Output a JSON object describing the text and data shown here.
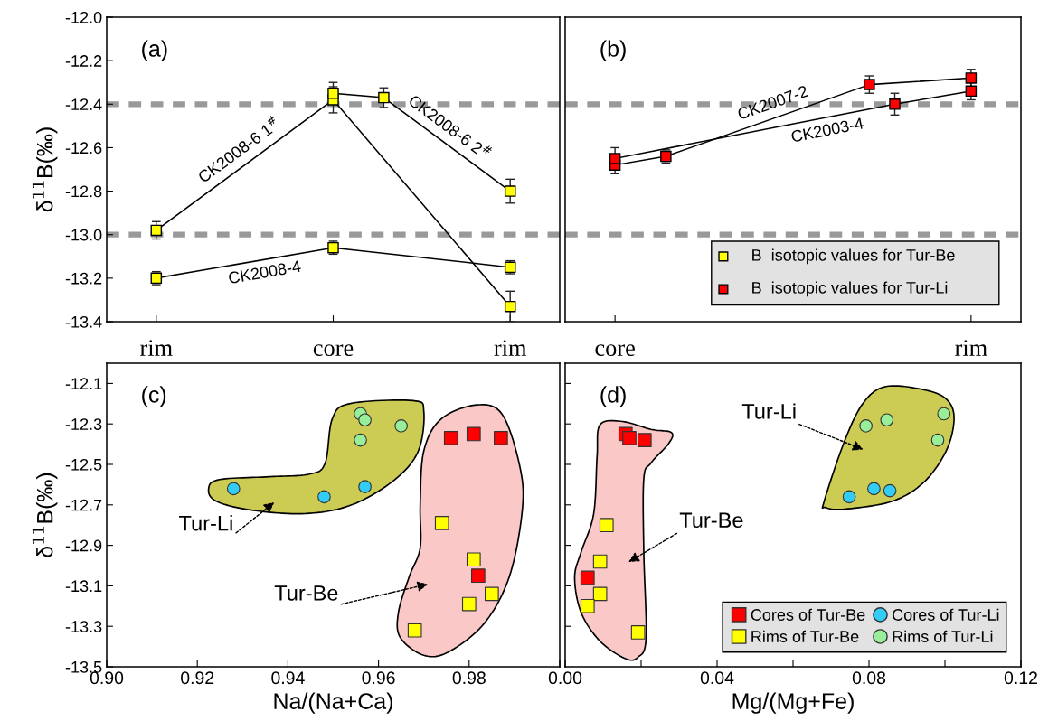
{
  "chart_data": [
    {
      "type": "line",
      "ylabel": "δ$^{11}$B(‰)",
      "annotations": [
        "(a)"
      ],
      "marker": "square",
      "line_style": "solid",
      "grid": false,
      "categories": [
        "rim",
        null,
        null,
        null,
        null,
        null,
        null,
        "core",
        null,
        null,
        null,
        null,
        null,
        null,
        "rim"
      ],
      "ylim": [
        -13.4,
        -12.0
      ],
      "yticks": [
        {
          "value": -12.0,
          "label": "-12.0"
        },
        {
          "value": -12.2,
          "label": "-12.2"
        },
        {
          "value": -12.4,
          "label": "-12.4"
        },
        {
          "value": -12.6,
          "label": "-12.6"
        },
        {
          "value": -12.8,
          "label": "-12.8"
        },
        {
          "value": -13.0,
          "label": "-13.0"
        },
        {
          "value": -13.2,
          "label": "-13.2"
        },
        {
          "value": -13.4,
          "label": "-13.4"
        }
      ],
      "ref_lines": [
        {
          "axis": "y",
          "value": -12.4,
          "color": "#999999",
          "line_style": "dashed"
        },
        {
          "axis": "y",
          "value": -13.0,
          "color": "#999999",
          "line_style": "dashed"
        }
      ],
      "series": [
        {
          "name": "CK2008-6 1$^{#}$",
          "color": "#ffff00",
          "values": [
            -12.98,
            null,
            null,
            null,
            null,
            null,
            null,
            -12.38,
            null,
            null,
            null,
            null,
            null,
            null,
            -13.33
          ],
          "errors": [
            0.04,
            null,
            null,
            null,
            null,
            null,
            null,
            0.06,
            null,
            null,
            null,
            null,
            null,
            null,
            0.07
          ]
        },
        {
          "name": "CK2008-6 2$^{#}$",
          "color": "#ffff00",
          "values": [
            null,
            null,
            null,
            null,
            null,
            null,
            null,
            -12.35,
            null,
            -12.37,
            null,
            null,
            null,
            null,
            -12.8
          ],
          "errors": [
            null,
            null,
            null,
            null,
            null,
            null,
            null,
            0.05,
            null,
            0.045,
            null,
            null,
            null,
            null,
            0.055
          ]
        },
        {
          "name": "CK2008-4",
          "color": "#ffff00",
          "values": [
            -13.2,
            null,
            null,
            null,
            null,
            null,
            null,
            -13.06,
            null,
            null,
            null,
            null,
            null,
            null,
            -13.15
          ],
          "errors": [
            0.03,
            null,
            null,
            null,
            null,
            null,
            null,
            0.03,
            null,
            null,
            null,
            null,
            null,
            null,
            0.03
          ]
        }
      ]
    },
    {
      "type": "line",
      "annotations": [
        "(b)",
        "B  isotopic values for Tur-Be",
        "B  isotopic values for Tur-Li"
      ],
      "marker": "square",
      "line_style": "solid",
      "grid": false,
      "tick_labels": "x",
      "categories": [
        "core",
        null,
        null,
        null,
        null,
        null,
        null,
        null,
        null,
        null,
        null,
        null,
        null,
        null,
        "rim"
      ],
      "ylim": [
        -13.4,
        -12.0
      ],
      "ref_lines": [
        {
          "axis": "y",
          "value": -12.4,
          "color": "#999999",
          "line_style": "dashed"
        },
        {
          "axis": "y",
          "value": -13.0,
          "color": "#999999",
          "line_style": "dashed"
        }
      ],
      "series": [
        {
          "name": "CK2007-2",
          "color": "#ff0000",
          "values": [
            -12.68,
            null,
            -12.64,
            null,
            null,
            null,
            null,
            null,
            null,
            null,
            -12.31,
            null,
            null,
            null,
            -12.28
          ],
          "errors": [
            0.04,
            null,
            0.03,
            null,
            null,
            null,
            null,
            null,
            null,
            null,
            0.04,
            null,
            null,
            null,
            0.04
          ]
        },
        {
          "name": "CK2003-4",
          "color": "#ff0000",
          "values": [
            -12.65,
            null,
            null,
            null,
            null,
            null,
            null,
            null,
            null,
            null,
            null,
            -12.4,
            null,
            null,
            -12.34
          ],
          "errors": [
            0.05,
            null,
            null,
            null,
            null,
            null,
            null,
            null,
            null,
            null,
            null,
            0.05,
            null,
            null,
            0.04
          ]
        }
      ]
    },
    {
      "type": "scatter",
      "xlabel": "Na/(Na+Ca)",
      "ylabel": "δ$^{11}$B(‰)",
      "grid": false,
      "annotations": [
        "(c)",
        "Tur-Li",
        "Tur-Be"
      ],
      "xlim": [
        0.9,
        1.0
      ],
      "xticks": [
        {
          "value": 0.9,
          "label": "0.90"
        },
        {
          "value": 0.92,
          "label": "0.92"
        },
        {
          "value": 0.94,
          "label": "0.94"
        },
        {
          "value": 0.96,
          "label": "0.96"
        },
        {
          "value": 0.98,
          "label": "0.98"
        },
        {
          "value": 1.0,
          "label": null
        }
      ],
      "ylim": [
        -13.5,
        -12.0
      ],
      "yticks": [
        {
          "value": -12.1,
          "label": "-12.1"
        },
        {
          "value": -12.3,
          "label": "-12.3"
        },
        {
          "value": -12.5,
          "label": "-12.5"
        },
        {
          "value": -12.7,
          "label": "-12.7"
        },
        {
          "value": -12.9,
          "label": "-12.9"
        },
        {
          "value": -13.1,
          "label": "-13.1"
        },
        {
          "value": -13.3,
          "label": "-13.3"
        },
        {
          "value": -13.5,
          "label": "-13.5"
        }
      ],
      "series": [
        {
          "color": "#ff0000",
          "marker": "square",
          "x": [
            0.976,
            0.981,
            0.987,
            0.982
          ],
          "values": [
            -12.37,
            -12.35,
            -12.37,
            -13.05
          ]
        },
        {
          "color": "#ffff00",
          "marker": "square",
          "x": [
            0.974,
            0.981,
            0.985,
            0.98,
            0.968
          ],
          "values": [
            -12.79,
            -12.97,
            -13.14,
            -13.19,
            -13.32
          ]
        },
        {
          "color": "#33ccf5",
          "marker": "circle",
          "x": [
            0.928,
            0.948,
            0.957
          ],
          "values": [
            -12.62,
            -12.66,
            -12.61
          ]
        },
        {
          "color": "#99ee99",
          "marker": "circle",
          "x": [
            0.956,
            0.957,
            0.956,
            0.965
          ],
          "values": [
            -12.25,
            -12.28,
            -12.38,
            -12.31
          ]
        }
      ]
    },
    {
      "type": "scatter",
      "xlabel": "Mg/(Mg+Fe)",
      "grid": false,
      "legend": "bottom right",
      "tick_labels": "x",
      "annotations": [
        "(d)",
        "Tur-Li",
        "Tur-Be"
      ],
      "xlim": [
        0.0,
        0.12
      ],
      "xticks": [
        {
          "value": 0.0,
          "label": "0.00"
        },
        {
          "value": 0.02,
          "label": null
        },
        {
          "value": 0.04,
          "label": "0.04"
        },
        {
          "value": 0.06,
          "label": null
        },
        {
          "value": 0.08,
          "label": "0.08"
        },
        {
          "value": 0.1,
          "label": null
        },
        {
          "value": 0.12,
          "label": "0.12"
        }
      ],
      "ylim": [
        -13.5,
        -12.0
      ],
      "yticks": [
        {
          "value": -12.1,
          "label": null
        },
        {
          "value": -12.3,
          "label": null
        },
        {
          "value": -12.5,
          "label": null
        },
        {
          "value": -12.7,
          "label": null
        },
        {
          "value": -12.9,
          "label": null
        },
        {
          "value": -13.1,
          "label": null
        },
        {
          "value": -13.3,
          "label": null
        }
      ],
      "series": [
        {
          "name": "Cores of Tur-Be",
          "color": "#ff0000",
          "marker": "square",
          "x": [
            0.0159,
            0.0169,
            0.0209,
            0.0059
          ],
          "values": [
            -12.35,
            -12.37,
            -12.38,
            -13.06
          ]
        },
        {
          "name": "Rims of Tur-Be",
          "color": "#ffff00",
          "marker": "square",
          "x": [
            0.0109,
            0.0092,
            0.0092,
            0.0059,
            0.0192
          ],
          "values": [
            -12.8,
            -12.98,
            -13.14,
            -13.2,
            -13.33
          ]
        },
        {
          "name": "Cores of Tur-Li",
          "color": "#33ccf5",
          "marker": "circle",
          "x": [
            0.0748,
            0.0813,
            0.0855
          ],
          "values": [
            -12.66,
            -12.62,
            -12.63
          ]
        },
        {
          "name": "Rims of Tur-Li",
          "color": "#99ee99",
          "marker": "circle",
          "x": [
            0.0792,
            0.0847,
            0.0997,
            0.0981
          ],
          "values": [
            -12.31,
            -12.28,
            -12.25,
            -12.38
          ]
        }
      ]
    }
  ]
}
